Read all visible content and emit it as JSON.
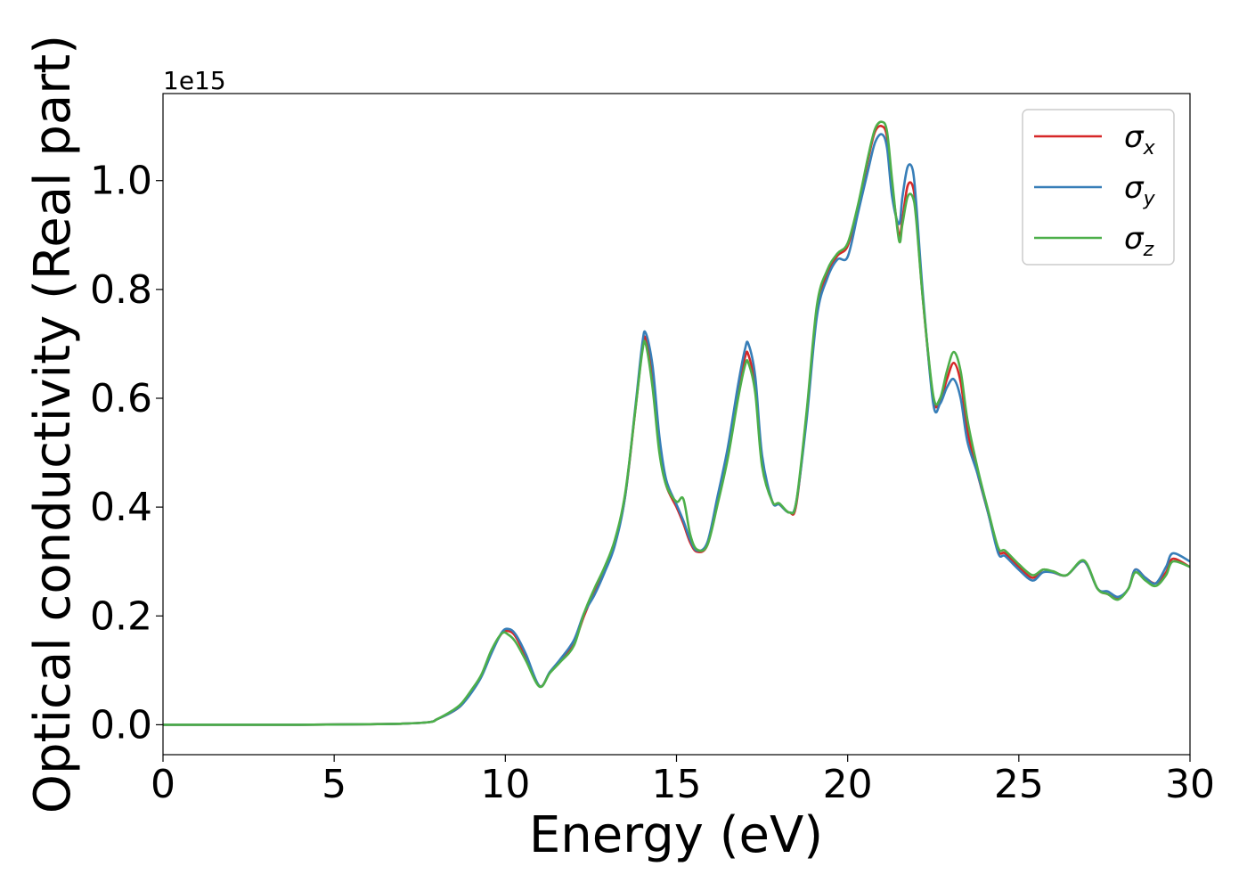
{
  "chart_data": {
    "type": "line",
    "xlabel": "Energy (eV)",
    "ylabel": "Optical conductivity (Real part)",
    "y_offset_label": "1e15",
    "xlim": [
      0,
      30
    ],
    "ylim": [
      -0.055,
      1.16
    ],
    "x_ticks": [
      "0",
      "5",
      "10",
      "15",
      "20",
      "25",
      "30"
    ],
    "y_ticks": [
      "0.0",
      "0.2",
      "0.4",
      "0.6",
      "0.8",
      "1.0"
    ],
    "grid": false,
    "legend_placement": "top-right",
    "x": [
      0,
      4,
      6,
      7,
      7.8,
      8,
      8.4,
      8.7,
      9,
      9.3,
      9.6,
      9.9,
      10.1,
      10.3,
      10.6,
      11,
      11.3,
      11.6,
      12,
      12.3,
      12.6,
      12.9,
      13.2,
      13.5,
      13.8,
      14,
      14.1,
      14.3,
      14.5,
      14.7,
      15,
      15.2,
      15.4,
      15.6,
      15.9,
      16.2,
      16.5,
      16.8,
      17,
      17.1,
      17.3,
      17.5,
      17.8,
      18,
      18.3,
      18.5,
      18.8,
      19.1,
      19.4,
      19.7,
      20,
      20.3,
      20.6,
      20.8,
      21,
      21.15,
      21.3,
      21.5,
      21.6,
      21.75,
      21.9,
      22,
      22.2,
      22.5,
      22.7,
      22.9,
      23.1,
      23.3,
      23.5,
      23.8,
      24.1,
      24.4,
      24.6,
      25,
      25.4,
      25.7,
      26,
      26.4,
      26.9,
      27.3,
      27.6,
      27.9,
      28.2,
      28.4,
      28.7,
      29,
      29.3,
      29.5,
      30
    ],
    "series": [
      {
        "name": "σx",
        "color": "#d62728",
        "values": [
          0,
          0,
          0.001,
          0.002,
          0.005,
          0.01,
          0.022,
          0.035,
          0.06,
          0.09,
          0.135,
          0.168,
          0.172,
          0.162,
          0.125,
          0.071,
          0.096,
          0.117,
          0.15,
          0.2,
          0.245,
          0.285,
          0.335,
          0.42,
          0.58,
          0.69,
          0.71,
          0.64,
          0.51,
          0.44,
          0.4,
          0.37,
          0.335,
          0.318,
          0.33,
          0.41,
          0.5,
          0.61,
          0.675,
          0.68,
          0.62,
          0.48,
          0.41,
          0.405,
          0.39,
          0.405,
          0.57,
          0.76,
          0.83,
          0.862,
          0.88,
          0.95,
          1.04,
          1.09,
          1.1,
          1.08,
          0.99,
          0.9,
          0.93,
          0.99,
          0.99,
          0.94,
          0.78,
          0.6,
          0.595,
          0.635,
          0.665,
          0.63,
          0.54,
          0.46,
          0.39,
          0.32,
          0.315,
          0.29,
          0.27,
          0.285,
          0.28,
          0.275,
          0.3,
          0.25,
          0.24,
          0.232,
          0.25,
          0.285,
          0.27,
          0.26,
          0.28,
          0.305,
          0.29
        ]
      },
      {
        "name": "σy",
        "color": "#377eb8",
        "values": [
          0,
          0,
          0.001,
          0.002,
          0.005,
          0.01,
          0.022,
          0.035,
          0.058,
          0.088,
          0.132,
          0.17,
          0.176,
          0.166,
          0.13,
          0.071,
          0.097,
          0.12,
          0.155,
          0.205,
          0.238,
          0.28,
          0.33,
          0.42,
          0.585,
          0.7,
          0.72,
          0.66,
          0.53,
          0.45,
          0.405,
          0.375,
          0.34,
          0.32,
          0.335,
          0.42,
          0.51,
          0.625,
          0.69,
          0.7,
          0.64,
          0.495,
          0.41,
          0.405,
          0.39,
          0.41,
          0.56,
          0.75,
          0.82,
          0.855,
          0.86,
          0.94,
          1.02,
          1.07,
          1.085,
          1.06,
          0.97,
          0.92,
          0.97,
          1.025,
          1.02,
          0.96,
          0.79,
          0.59,
          0.59,
          0.62,
          0.635,
          0.6,
          0.52,
          0.46,
          0.39,
          0.315,
          0.31,
          0.285,
          0.265,
          0.28,
          0.28,
          0.275,
          0.3,
          0.25,
          0.245,
          0.235,
          0.25,
          0.285,
          0.27,
          0.26,
          0.29,
          0.315,
          0.3
        ]
      },
      {
        "name": "σz",
        "color": "#4daf4a",
        "values": [
          0,
          0,
          0.001,
          0.002,
          0.005,
          0.01,
          0.024,
          0.038,
          0.063,
          0.092,
          0.138,
          0.168,
          0.165,
          0.152,
          0.118,
          0.07,
          0.095,
          0.115,
          0.145,
          0.205,
          0.25,
          0.29,
          0.34,
          0.425,
          0.58,
          0.685,
          0.7,
          0.62,
          0.5,
          0.44,
          0.41,
          0.415,
          0.35,
          0.322,
          0.33,
          0.405,
          0.49,
          0.6,
          0.66,
          0.665,
          0.61,
          0.475,
          0.41,
          0.407,
          0.39,
          0.41,
          0.575,
          0.77,
          0.835,
          0.866,
          0.885,
          0.955,
          1.045,
          1.095,
          1.108,
          1.09,
          1.0,
          0.89,
          0.92,
          0.97,
          0.97,
          0.93,
          0.78,
          0.605,
          0.6,
          0.65,
          0.685,
          0.65,
          0.56,
          0.47,
          0.395,
          0.325,
          0.32,
          0.295,
          0.275,
          0.285,
          0.282,
          0.275,
          0.302,
          0.25,
          0.24,
          0.23,
          0.25,
          0.28,
          0.265,
          0.255,
          0.275,
          0.3,
          0.29
        ]
      }
    ]
  },
  "legend": {
    "entries": [
      {
        "symbol": "σ",
        "sub": "x",
        "color": "#d62728"
      },
      {
        "symbol": "σ",
        "sub": "y",
        "color": "#377eb8"
      },
      {
        "symbol": "σ",
        "sub": "z",
        "color": "#4daf4a"
      }
    ]
  }
}
